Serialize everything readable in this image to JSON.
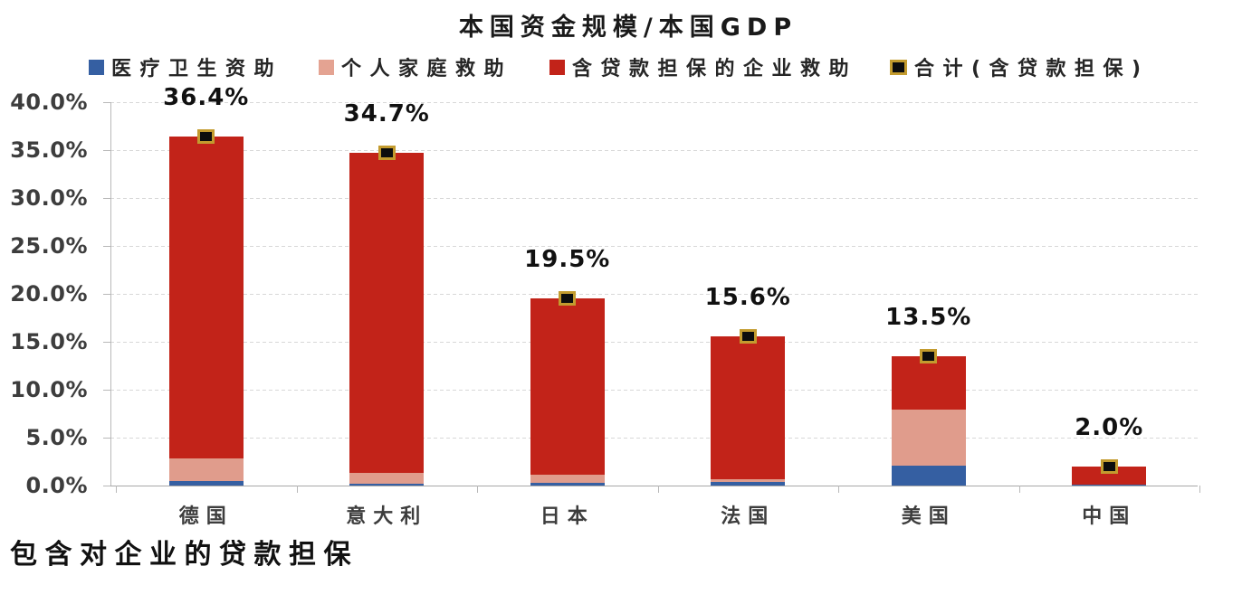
{
  "title": "本国资金规模/本国GDP",
  "note": "包含对企业的贷款担保",
  "colors": {
    "health": "#355fa2",
    "household": "#e09c8c",
    "enterprise": "#c22319",
    "marker_fill": "#0d0d0d",
    "marker_border": "#c39b2e",
    "gridline": "#d8d8d8",
    "axis": "#b8b8b8"
  },
  "legend": [
    {
      "label": "医疗卫生资助",
      "color": "#355fa2",
      "type": "square"
    },
    {
      "label": "个人家庭救助",
      "color": "#e4a392",
      "type": "square"
    },
    {
      "label": "含贷款担保的企业救助",
      "color": "#c22319",
      "type": "square"
    },
    {
      "label": "合计(含贷款担保)",
      "color": "#0d0d0d",
      "border": "#c39b2e",
      "type": "marker"
    }
  ],
  "chart_data": {
    "type": "bar",
    "stacked": true,
    "title": "本国资金规模/本国GDP",
    "categories": [
      "德国",
      "意大利",
      "日本",
      "法国",
      "美国",
      "中国"
    ],
    "series": [
      {
        "name": "医疗卫生资助",
        "color": "#355fa2",
        "values": [
          0.5,
          0.2,
          0.3,
          0.35,
          2.1,
          0.1
        ]
      },
      {
        "name": "个人家庭救助",
        "color": "#e09c8c",
        "values": [
          2.3,
          1.1,
          0.8,
          0.3,
          5.8,
          0.0
        ]
      },
      {
        "name": "含贷款担保的企业救助",
        "color": "#c22319",
        "values": [
          33.6,
          33.4,
          18.4,
          14.95,
          5.6,
          1.9
        ]
      }
    ],
    "totals": {
      "name": "合计(含贷款担保)",
      "values": [
        36.4,
        34.7,
        19.5,
        15.6,
        13.5,
        2.0
      ],
      "labels": [
        "36.4%",
        "34.7%",
        "19.5%",
        "15.6%",
        "13.5%",
        "2.0%"
      ]
    },
    "ylim": [
      0,
      40
    ],
    "yticks": [
      "0.0%",
      "5.0%",
      "10.0%",
      "15.0%",
      "20.0%",
      "25.0%",
      "30.0%",
      "35.0%",
      "40.0%"
    ],
    "grid": true,
    "legend_position": "top"
  }
}
